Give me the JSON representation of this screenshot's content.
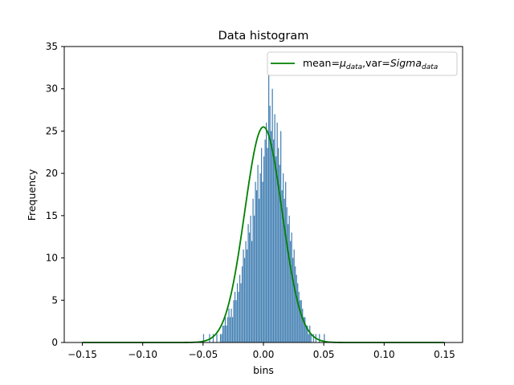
{
  "chart_data": {
    "type": "histogram",
    "title": "Data histogram",
    "xlabel": "bins",
    "ylabel": "Frequency",
    "xlim": [
      -0.165,
      0.165
    ],
    "ylim": [
      0,
      35
    ],
    "xticks": [
      -0.15,
      -0.1,
      -0.05,
      0.0,
      0.05,
      0.1,
      0.15
    ],
    "xtick_labels": [
      "−0.15",
      "−0.10",
      "−0.05",
      "0.00",
      "0.05",
      "0.10",
      "0.15"
    ],
    "yticks": [
      0,
      5,
      10,
      15,
      20,
      25,
      30,
      35
    ],
    "ytick_labels": [
      "0",
      "5",
      "10",
      "15",
      "20",
      "25",
      "30",
      "35"
    ],
    "bar_color": "#4682b4",
    "curve_color": "#008000",
    "bin_start": -0.05,
    "bin_width": 0.001,
    "counts": [
      1,
      0,
      0,
      0,
      0,
      1,
      0,
      0,
      1,
      0,
      0,
      1,
      0,
      0,
      1,
      1,
      2,
      2,
      3,
      2,
      3,
      4,
      3,
      4,
      3,
      5,
      6,
      5,
      7,
      6,
      8,
      7,
      9,
      11,
      10,
      12,
      11,
      14,
      13,
      15,
      12,
      17,
      15,
      19,
      18,
      21,
      17,
      20,
      23,
      19,
      22,
      24,
      26,
      23,
      34,
      28,
      25,
      30,
      24,
      27,
      22,
      26,
      23,
      21,
      25,
      18,
      20,
      17,
      19,
      16,
      14,
      15,
      12,
      13,
      10,
      11,
      9,
      8,
      7,
      6,
      5,
      5,
      4,
      3,
      3,
      2,
      2,
      1,
      2,
      1,
      0,
      1,
      0,
      1,
      0,
      0,
      1,
      0,
      0,
      0,
      1,
      0,
      0,
      0,
      0,
      0,
      0,
      0,
      0,
      0
    ],
    "curve": {
      "name": "normal-fit",
      "mean": 0.0,
      "std": 0.0155,
      "x_range": [
        -0.15,
        0.15
      ],
      "peak": 25.5
    },
    "legend": {
      "position": "top-right",
      "label_prefix": "mean=",
      "mu": "μ",
      "mu_sub": "data",
      "label_mid": ",var=",
      "sigma": "Sigma",
      "sigma_sub": "data"
    }
  }
}
